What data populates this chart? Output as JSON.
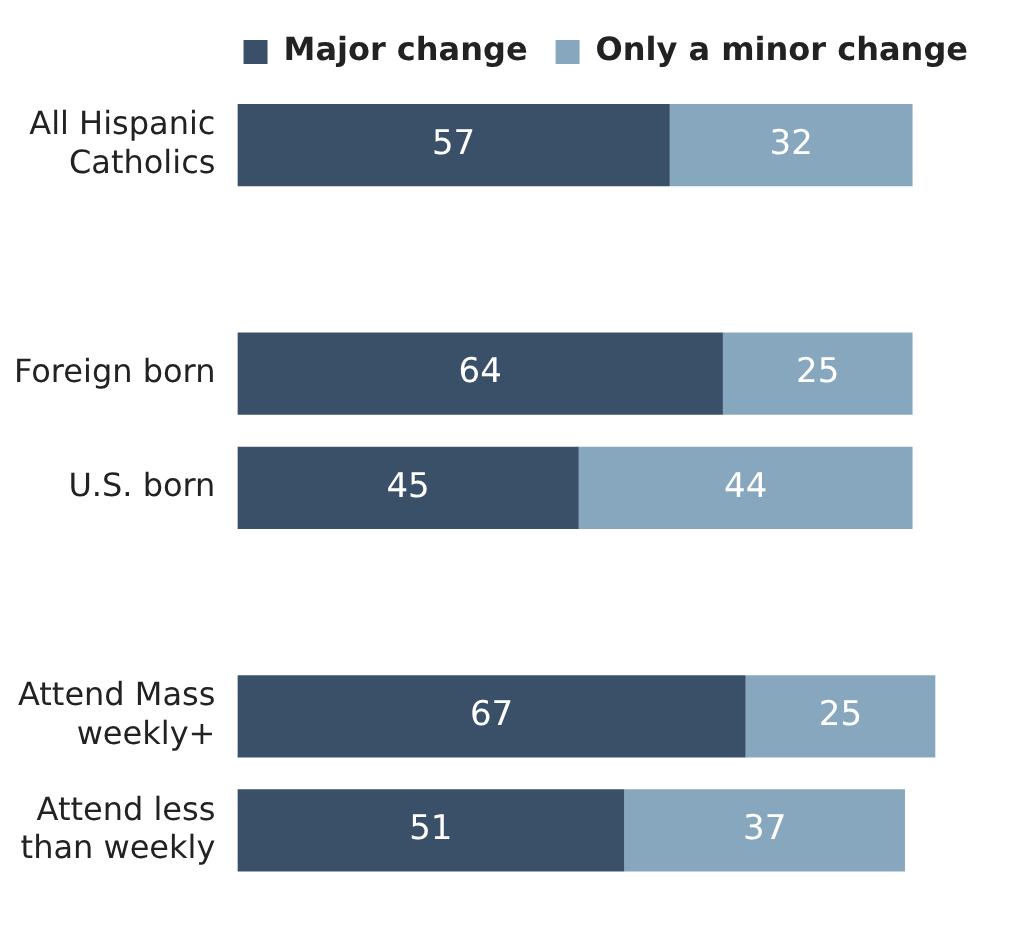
{
  "chart_data": {
    "type": "bar",
    "orientation": "horizontal",
    "stacked": true,
    "data_labels": true,
    "legend": "top",
    "categories": [
      "All Hispanic Catholics",
      null,
      "Foreign born",
      "U.S. born",
      null,
      "Attend Mass weekly+",
      "Attend less than weekly"
    ],
    "series": [
      {
        "name": "Major change",
        "color": "#3a5069",
        "values": [
          57,
          null,
          64,
          45,
          null,
          67,
          51
        ]
      },
      {
        "name": "Only a minor change",
        "color": "#87a7bf",
        "values": [
          32,
          null,
          25,
          44,
          null,
          25,
          37
        ]
      }
    ]
  }
}
